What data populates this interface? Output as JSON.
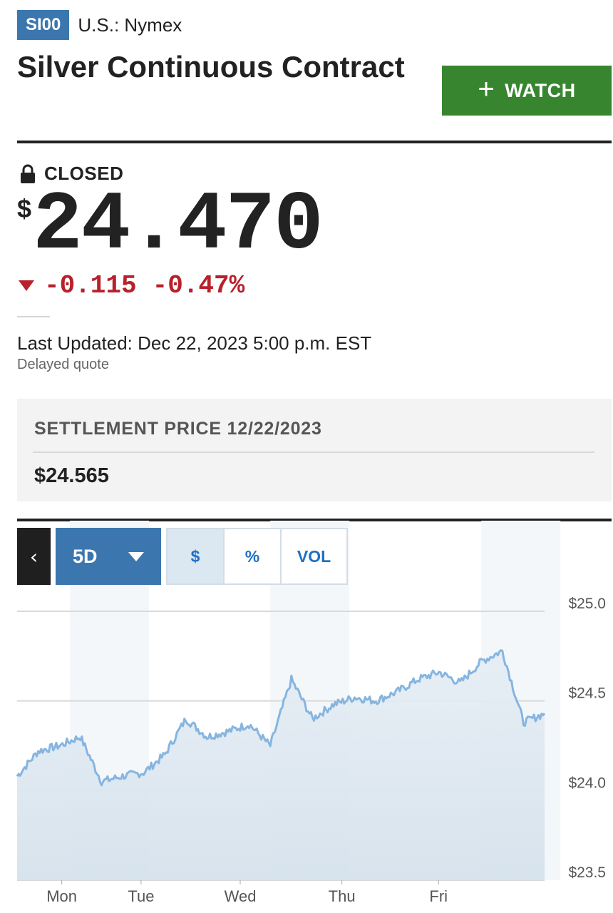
{
  "header": {
    "ticker": "SI00",
    "exchange": "U.S.: Nymex",
    "title": "Silver Continuous Contract",
    "watch_label": "WATCH"
  },
  "quote": {
    "status": "CLOSED",
    "currency": "$",
    "price": "24.470",
    "change": "-0.115",
    "change_pct": "-0.47%",
    "last_updated": "Last Updated: Dec 22, 2023 5:00 p.m. EST",
    "delayed": "Delayed quote"
  },
  "settlement": {
    "label": "SETTLEMENT PRICE 12/22/2023",
    "value": "$24.565"
  },
  "chart_controls": {
    "back_glyph": "‹",
    "range": "5D",
    "toggles": [
      "$",
      "%",
      "VOL"
    ],
    "active_toggle": "$"
  },
  "colors": {
    "accent": "#3b77ae",
    "watch_green": "#37862f",
    "negative": "#b8202b",
    "line": "#86b5e0"
  },
  "icons": [
    "lock-icon",
    "plus-icon",
    "down-arrow-icon",
    "chevron-left-icon",
    "caret-down-icon"
  ],
  "chart_data": {
    "type": "area",
    "ylim": [
      23.5,
      25.0
    ],
    "y_ticks": [
      "$25.0",
      "$24.5",
      "$24.0",
      "$23.5"
    ],
    "x_ticks": [
      "Mon",
      "Tue",
      "Wed",
      "Thu",
      "Fri"
    ],
    "grid": true,
    "series": [
      {
        "x": [
          0,
          0.2,
          0.4,
          0.6,
          0.8,
          1.0,
          1.2,
          1.4,
          1.6,
          1.8,
          2.0,
          2.2,
          2.4,
          2.6,
          2.8,
          3.0,
          3.2,
          3.4,
          3.6,
          3.8,
          4.0,
          4.2,
          4.4,
          4.6,
          4.8,
          5.0
        ],
        "values": [
          24.08,
          24.22,
          24.25,
          24.3,
          24.05,
          24.08,
          24.1,
          24.2,
          24.4,
          24.3,
          24.33,
          24.37,
          24.25,
          24.62,
          24.4,
          24.48,
          24.52,
          24.5,
          24.55,
          24.62,
          24.66,
          24.6,
          24.72,
          24.78,
          24.38,
          24.43
        ]
      }
    ]
  }
}
